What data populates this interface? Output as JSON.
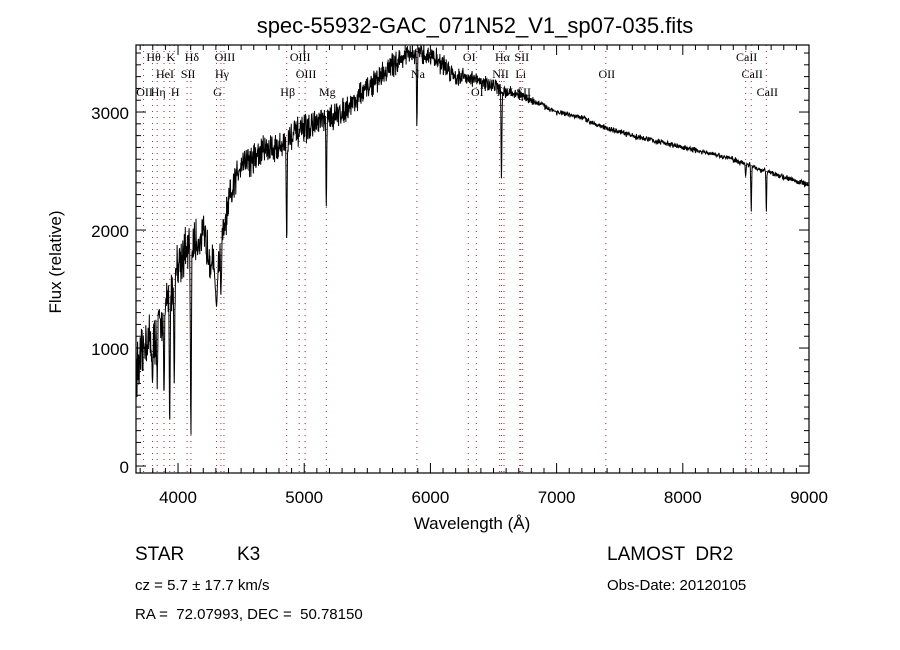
{
  "chart_data": {
    "type": "line",
    "title": "spec-55932-GAC_071N52_V1_sp07-035.fits",
    "xlabel": "Wavelength (Å)",
    "ylabel": "Flux (relative)",
    "xlim": [
      3667,
      9000
    ],
    "ylim": [
      -59,
      3568
    ],
    "xticks": [
      "4000",
      "5000",
      "6000",
      "7000",
      "8000",
      "9000"
    ],
    "xtick_values": [
      4000,
      5000,
      6000,
      7000,
      8000,
      9000
    ],
    "yticks": [
      "0",
      "1000",
      "2000",
      "3000"
    ],
    "ytick_values": [
      0,
      1000,
      2000,
      3000
    ],
    "grid": false,
    "series": [
      {
        "name": "spectrum",
        "continuum": [
          [
            3700,
            850
          ],
          [
            3750,
            1100
          ],
          [
            3800,
            1000
          ],
          [
            3850,
            1200
          ],
          [
            3900,
            1350
          ],
          [
            3950,
            1500
          ],
          [
            4000,
            1750
          ],
          [
            4050,
            1800
          ],
          [
            4150,
            1900
          ],
          [
            4200,
            1950
          ],
          [
            4250,
            1800
          ],
          [
            4300,
            1600
          ],
          [
            4350,
            1900
          ],
          [
            4400,
            2200
          ],
          [
            4450,
            2400
          ],
          [
            4500,
            2600
          ],
          [
            4600,
            2600
          ],
          [
            4700,
            2700
          ],
          [
            4800,
            2700
          ],
          [
            4900,
            2800
          ],
          [
            5000,
            2850
          ],
          [
            5100,
            2900
          ],
          [
            5200,
            2950
          ],
          [
            5300,
            3000
          ],
          [
            5400,
            3100
          ],
          [
            5500,
            3200
          ],
          [
            5600,
            3300
          ],
          [
            5700,
            3400
          ],
          [
            5800,
            3480
          ],
          [
            5900,
            3480
          ],
          [
            6000,
            3480
          ],
          [
            6100,
            3400
          ],
          [
            6200,
            3300
          ],
          [
            6300,
            3300
          ],
          [
            6400,
            3250
          ],
          [
            6500,
            3230
          ],
          [
            6600,
            3170
          ],
          [
            6700,
            3150
          ],
          [
            6800,
            3100
          ],
          [
            7000,
            3000
          ],
          [
            7200,
            2950
          ],
          [
            7400,
            2860
          ],
          [
            7600,
            2800
          ],
          [
            7800,
            2750
          ],
          [
            8000,
            2700
          ],
          [
            8200,
            2650
          ],
          [
            8400,
            2600
          ],
          [
            8600,
            2520
          ],
          [
            8800,
            2450
          ],
          [
            9000,
            2380
          ]
        ],
        "absorption": [
          [
            3798,
            700,
            4
          ],
          [
            3835,
            650,
            4
          ],
          [
            3889,
            600,
            5
          ],
          [
            3934,
            350,
            5
          ],
          [
            3970,
            700,
            5
          ],
          [
            4102,
            250,
            5
          ],
          [
            4305,
            1350,
            8
          ],
          [
            4340,
            1450,
            5
          ],
          [
            4861,
            1900,
            5
          ],
          [
            5175,
            2200,
            5
          ],
          [
            5893,
            2870,
            4
          ],
          [
            6563,
            2430,
            5
          ],
          [
            8498,
            2450,
            4
          ],
          [
            8542,
            2150,
            4
          ],
          [
            8662,
            2150,
            4
          ]
        ],
        "noise_level": [
          [
            3700,
            350
          ],
          [
            4400,
            250
          ],
          [
            5000,
            180
          ],
          [
            6000,
            140
          ],
          [
            6600,
            80
          ],
          [
            7000,
            35
          ],
          [
            9000,
            35
          ]
        ]
      }
    ]
  },
  "line_markers": [
    {
      "label": "Hθ",
      "wavelength": 3798,
      "row": 1
    },
    {
      "label": "K",
      "wavelength": 3934,
      "row": 1
    },
    {
      "label": "Hδ",
      "wavelength": 4102,
      "row": 1
    },
    {
      "label": "OIII",
      "wavelength": 4364,
      "row": 1
    },
    {
      "label": "OIII",
      "wavelength": 4960,
      "row": 1
    },
    {
      "label": "OI",
      "wavelength": 6300,
      "row": 1
    },
    {
      "label": "Hα",
      "wavelength": 6563,
      "row": 1
    },
    {
      "label": "SII",
      "wavelength": 6716,
      "row": 1
    },
    {
      "label": "CaII",
      "wavelength": 8498,
      "row": 1
    },
    {
      "label": "HeI",
      "wavelength": 3889,
      "row": 2
    },
    {
      "label": "SII",
      "wavelength": 4072,
      "row": 2
    },
    {
      "label": "Hγ",
      "wavelength": 4340,
      "row": 2
    },
    {
      "label": "OIII",
      "wavelength": 5007,
      "row": 2
    },
    {
      "label": "Na",
      "wavelength": 5893,
      "row": 2
    },
    {
      "label": "NII",
      "wavelength": 6548,
      "row": 2
    },
    {
      "label": "Li",
      "wavelength": 6708,
      "row": 2
    },
    {
      "label": "OII",
      "wavelength": 7390,
      "row": 2
    },
    {
      "label": "CaII",
      "wavelength": 8542,
      "row": 2
    },
    {
      "label": "OII",
      "wavelength": 3727,
      "row": 3
    },
    {
      "label": "Hη",
      "wavelength": 3835,
      "row": 3
    },
    {
      "label": "H",
      "wavelength": 3970,
      "row": 3
    },
    {
      "label": "G",
      "wavelength": 4305,
      "row": 3
    },
    {
      "label": "Hβ",
      "wavelength": 4861,
      "row": 3
    },
    {
      "label": "Mg",
      "wavelength": 5175,
      "row": 3
    },
    {
      "label": "OI",
      "wavelength": 6364,
      "row": 3
    },
    {
      "label": "NII",
      "wavelength": 6583,
      "row": 3
    },
    {
      "label": "SII",
      "wavelength": 6731,
      "row": 3
    },
    {
      "label": "CaII",
      "wavelength": 8662,
      "row": 3
    }
  ],
  "marker_color": "#a03030",
  "info": {
    "object_type": "STAR",
    "subclass": "K3",
    "cz": "cz = 5.7 ± 17.7 km/s",
    "coords": "RA =  72.07993, DEC =  50.78150",
    "survey": "LAMOST  DR2",
    "obs_date": "Obs-Date: 20120105"
  }
}
